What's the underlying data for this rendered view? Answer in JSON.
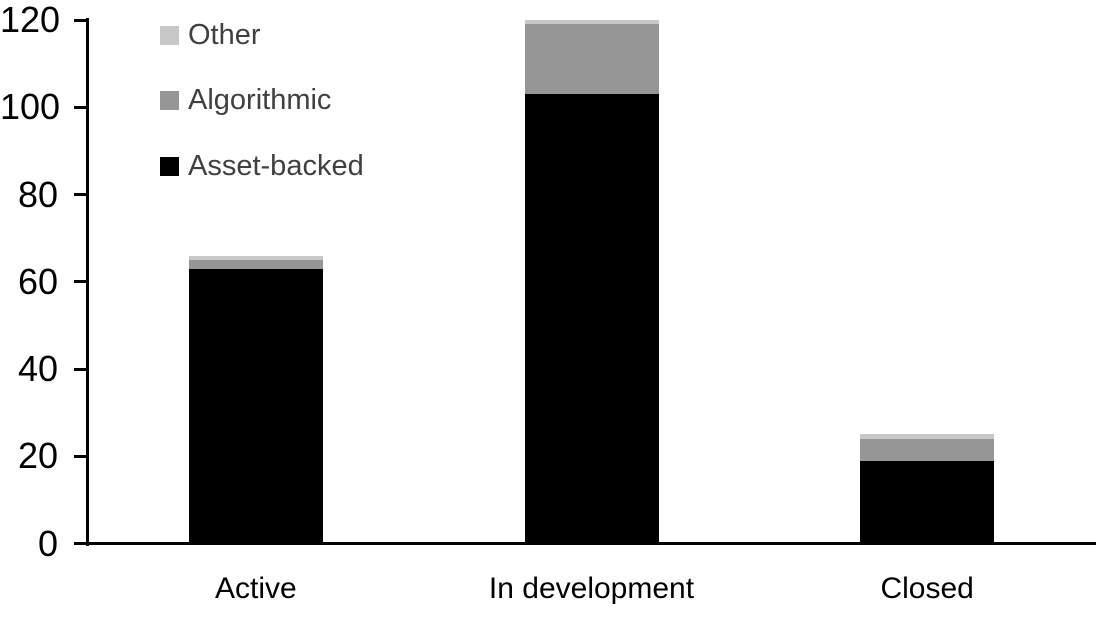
{
  "chart_data": {
    "type": "bar",
    "stacked": true,
    "title": "",
    "xlabel": "",
    "ylabel": "",
    "categories": [
      "Active",
      "In development",
      "Closed"
    ],
    "series": [
      {
        "name": "Asset-backed",
        "color": "#000000",
        "values": [
          63,
          103,
          19
        ]
      },
      {
        "name": "Algorithmic",
        "color": "#969696",
        "values": [
          2,
          16,
          5
        ]
      },
      {
        "name": "Other",
        "color": "#c8c8c8",
        "values": [
          1,
          1,
          1
        ]
      }
    ],
    "y_axis": {
      "min": 0,
      "max": 120,
      "step": 20,
      "tick_labels": [
        "0",
        "20",
        "40",
        "60",
        "80",
        "100",
        "120"
      ]
    },
    "legend": {
      "position": "top-left",
      "entries_top_to_bottom": [
        "Other",
        "Algorithmic",
        "Asset-backed"
      ],
      "text_color": "#404040"
    },
    "grid": false,
    "axis_color": "#000000",
    "background_color": "#ffffff"
  }
}
